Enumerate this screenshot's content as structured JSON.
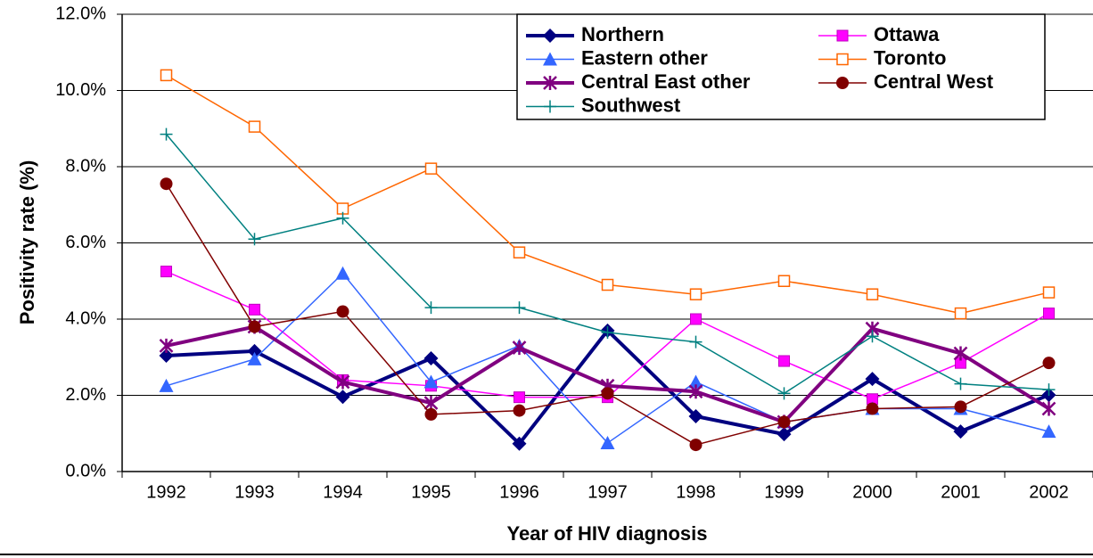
{
  "chart_data": {
    "type": "line",
    "x_label": "Year of HIV diagnosis",
    "y_label": "Positivity rate (%)",
    "categories": [
      "1992",
      "1993",
      "1994",
      "1995",
      "1996",
      "1997",
      "1998",
      "1999",
      "2000",
      "2001",
      "2002"
    ],
    "ylim": [
      0,
      12
    ],
    "yticks": [
      {
        "value": 0,
        "label": "0.0%"
      },
      {
        "value": 2,
        "label": "2.0%"
      },
      {
        "value": 4,
        "label": "4.0%"
      },
      {
        "value": 6,
        "label": "6.0%"
      },
      {
        "value": 8,
        "label": "8.0%"
      },
      {
        "value": 10,
        "label": "10.0%"
      },
      {
        "value": 12,
        "label": "12.0%"
      }
    ],
    "grid": true,
    "legend": "upper right",
    "series": [
      {
        "name": "Northern",
        "color": "#000080",
        "marker": "diamond",
        "values": [
          3.04,
          3.16,
          1.96,
          2.97,
          0.73,
          3.7,
          1.45,
          0.98,
          2.43,
          1.05,
          2.01
        ]
      },
      {
        "name": "Ottawa",
        "color": "#ff00ff",
        "marker": "square",
        "values": [
          5.25,
          4.25,
          2.4,
          2.25,
          1.95,
          1.95,
          4.0,
          2.9,
          1.9,
          2.85,
          4.15
        ]
      },
      {
        "name": "Eastern other",
        "color": "#3366ff",
        "marker": "triangle",
        "values": [
          2.25,
          2.95,
          5.2,
          2.35,
          3.3,
          0.75,
          2.35,
          1.3,
          1.65,
          1.65,
          1.05
        ]
      },
      {
        "name": "Toronto",
        "color": "#ff6600",
        "marker": "open-square",
        "values": [
          10.4,
          9.05,
          6.9,
          7.95,
          5.75,
          4.9,
          4.65,
          5.0,
          4.65,
          4.15,
          4.7
        ]
      },
      {
        "name": "Central East other",
        "color": "#800080",
        "marker": "star",
        "values": [
          3.3,
          3.8,
          2.35,
          1.8,
          3.25,
          2.25,
          2.1,
          1.3,
          3.75,
          3.1,
          1.65
        ]
      },
      {
        "name": "Central West",
        "color": "#800000",
        "marker": "circle",
        "values": [
          7.55,
          3.8,
          4.2,
          1.5,
          1.6,
          2.05,
          0.7,
          1.3,
          1.65,
          1.7,
          2.85
        ]
      },
      {
        "name": "Southwest",
        "color": "#008080",
        "marker": "plus",
        "values": [
          8.85,
          6.1,
          6.65,
          4.3,
          4.3,
          3.65,
          3.4,
          2.05,
          3.55,
          2.3,
          2.15
        ]
      }
    ]
  }
}
